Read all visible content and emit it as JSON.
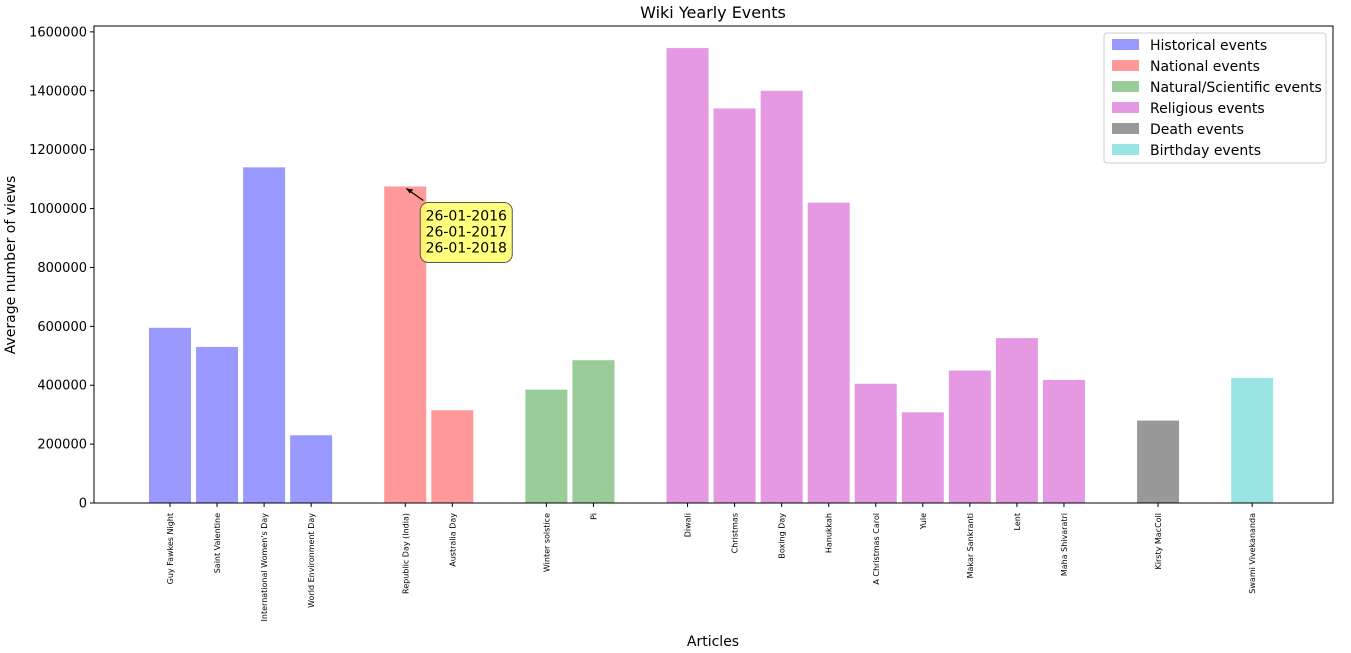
{
  "chart_data": {
    "type": "bar",
    "title": "Wiki Yearly Events",
    "xlabel": "Articles",
    "ylabel": "Average number of views",
    "ylim": [
      0,
      1620000
    ],
    "yticks": [
      "0",
      "200000",
      "400000",
      "600000",
      "800000",
      "1000000",
      "1200000",
      "1400000",
      "1600000"
    ],
    "grid": false,
    "legend_position": "top-right",
    "series": [
      {
        "name": "Historical events",
        "color": "#9999ff",
        "categories": [
          "Guy Fawkes Night",
          "Saint Valentine",
          "International Women's Day",
          "World Environment Day"
        ],
        "values": [
          595000,
          530000,
          1140000,
          230000
        ]
      },
      {
        "name": "National events",
        "color": "#ff9999",
        "categories": [
          "Republic Day (India)",
          "Australia Day"
        ],
        "values": [
          1075000,
          315000
        ]
      },
      {
        "name": "Natural/Scientific events",
        "color": "#99cc99",
        "categories": [
          "Winter solstice",
          "Pi"
        ],
        "values": [
          385000,
          485000
        ]
      },
      {
        "name": "Religious events",
        "color": "#e599e3",
        "categories": [
          "Diwali",
          "Christmas",
          "Boxing Day",
          "Hanukkah",
          "A Christmas Carol",
          "Yule",
          "Makar Sankranti",
          "Lent",
          "Maha Shivaratri"
        ],
        "values": [
          1545000,
          1340000,
          1400000,
          1020000,
          405000,
          308000,
          450000,
          560000,
          418000
        ]
      },
      {
        "name": "Death events",
        "color": "#999999",
        "categories": [
          "Kirsty MacColl"
        ],
        "values": [
          280000
        ]
      },
      {
        "name": "Birthday events",
        "color": "#99e5e5",
        "categories": [
          "Swami Vivekananda"
        ],
        "values": [
          425000
        ]
      }
    ],
    "annotation": {
      "target": "Republic Day (India)",
      "lines": [
        "26-01-2016",
        "26-01-2017",
        "26-01-2018"
      ],
      "box_color": "#ffff66"
    }
  }
}
